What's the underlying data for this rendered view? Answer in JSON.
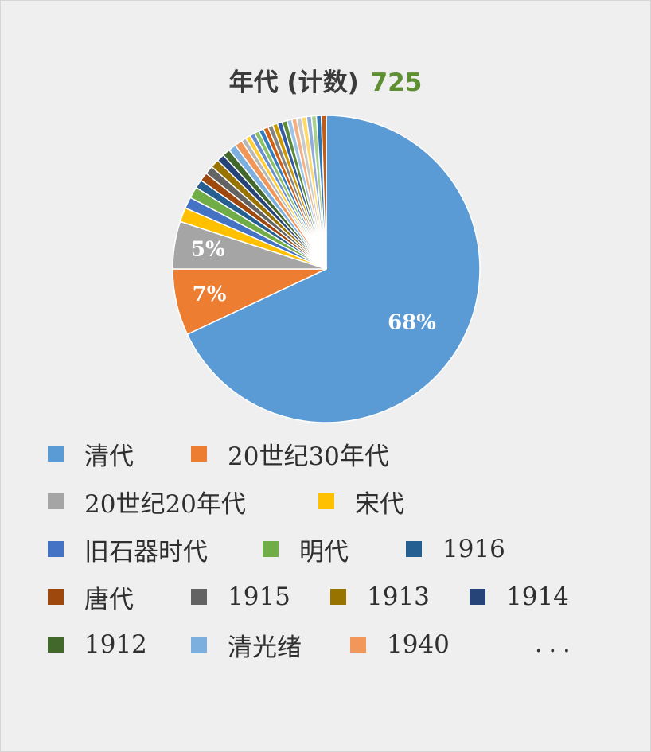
{
  "chart_data": {
    "type": "pie",
    "title": "年代 (计数)",
    "total": "725",
    "slices": [
      {
        "label": "清代",
        "percent": 68,
        "percent_label": "68%",
        "color": "#5b9bd5"
      },
      {
        "label": "20世纪30年代",
        "percent": 7,
        "percent_label": "7%",
        "color": "#ed7d31"
      },
      {
        "label": "20世纪20年代",
        "percent": 5,
        "percent_label": "5%",
        "color": "#a5a5a5"
      },
      {
        "label": "宋代",
        "percent": 1.5,
        "color": "#ffc000"
      },
      {
        "label": "旧石器时代",
        "percent": 1.2,
        "color": "#4472c4"
      },
      {
        "label": "明代",
        "percent": 1.2,
        "color": "#70ad47"
      },
      {
        "label": "1916",
        "percent": 0.9,
        "color": "#255e91"
      },
      {
        "label": "唐代",
        "percent": 0.9,
        "color": "#9e480e"
      },
      {
        "label": "1915",
        "percent": 0.9,
        "color": "#636363"
      },
      {
        "label": "1913",
        "percent": 0.9,
        "color": "#997300"
      },
      {
        "label": "1914",
        "percent": 0.8,
        "color": "#264478"
      },
      {
        "label": "1912",
        "percent": 0.8,
        "color": "#43682b"
      },
      {
        "label": "清光绪",
        "percent": 0.8,
        "color": "#7cafdd"
      },
      {
        "label": "1940",
        "percent": 0.8,
        "color": "#f1975a"
      }
    ],
    "other_colors": [
      "#b7b7b7",
      "#ffcd33",
      "#698ed0",
      "#8cc168",
      "#327dc2",
      "#d26012",
      "#848484",
      "#cc9a00",
      "#335aa1",
      "#5a8a39",
      "#9dc3e6",
      "#f4b183",
      "#c9c9c9",
      "#ffd966",
      "#8faadc",
      "#a9d18e",
      "#2e75b6",
      "#c55a11"
    ],
    "legend_more": "..."
  }
}
